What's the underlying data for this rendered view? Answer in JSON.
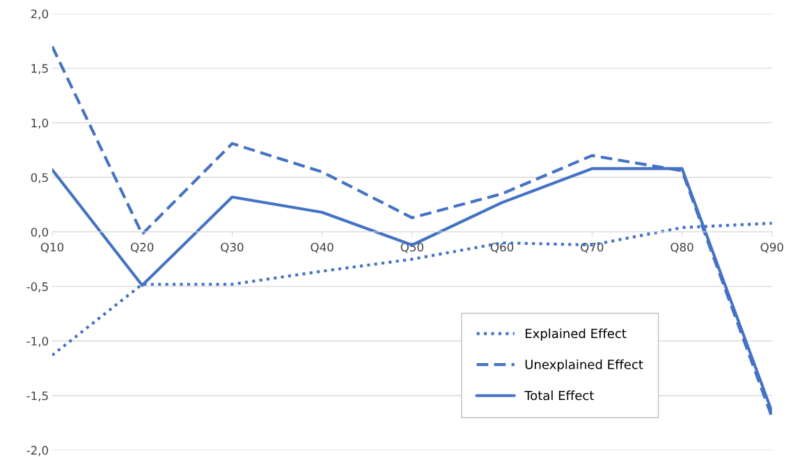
{
  "chart_data": {
    "type": "line",
    "categories": [
      "Q10",
      "Q20",
      "Q30",
      "Q40",
      "Q50",
      "Q60",
      "Q70",
      "Q80",
      "Q90"
    ],
    "series": [
      {
        "name": "Explained Effect",
        "color": "#4472c4",
        "line_style": "dotted",
        "values": [
          -1.13,
          -0.48,
          -0.48,
          -0.36,
          -0.25,
          -0.1,
          -0.12,
          0.04,
          0.08
        ]
      },
      {
        "name": "Unexplained Effect",
        "color": "#4472c4",
        "line_style": "dashed",
        "values": [
          1.7,
          -0.02,
          0.81,
          0.55,
          0.13,
          0.35,
          0.7,
          0.56,
          -1.7
        ]
      },
      {
        "name": "Total Effect",
        "color": "#4472c4",
        "line_style": "solid",
        "values": [
          0.57,
          -0.49,
          0.32,
          0.18,
          -0.12,
          0.27,
          0.58,
          0.58,
          -1.65
        ]
      }
    ],
    "ylim": [
      -2.0,
      2.0
    ],
    "yticks": [
      {
        "value": -2.0,
        "label": "-2,0"
      },
      {
        "value": -1.5,
        "label": "-1,5"
      },
      {
        "value": -1.0,
        "label": "-1,0"
      },
      {
        "value": -0.5,
        "label": "-0,5"
      },
      {
        "value": 0.0,
        "label": "0,0"
      },
      {
        "value": 0.5,
        "label": "0,5"
      },
      {
        "value": 1.0,
        "label": "1,0"
      },
      {
        "value": 1.5,
        "label": "1,5"
      },
      {
        "value": 2.0,
        "label": "2,0"
      }
    ],
    "grid": "y",
    "legend": "bottom right",
    "marker": "none"
  }
}
